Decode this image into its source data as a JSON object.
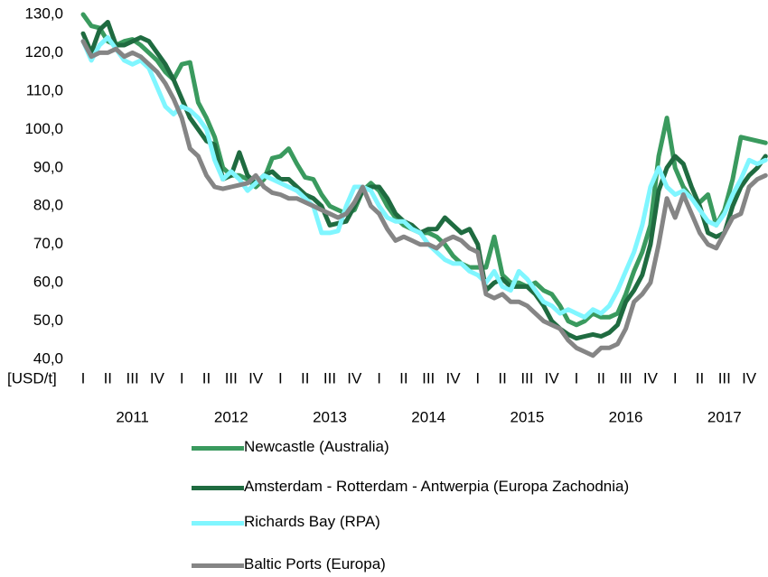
{
  "chart_data": {
    "type": "line",
    "y_label": "[USD/t]",
    "ylim": [
      40,
      130
    ],
    "yticks": [
      {
        "value": 40,
        "label": "40,0"
      },
      {
        "value": 50,
        "label": "50,0"
      },
      {
        "value": 60,
        "label": "60,0"
      },
      {
        "value": 70,
        "label": "70,0"
      },
      {
        "value": 80,
        "label": "80,0"
      },
      {
        "value": 90,
        "label": "90,0"
      },
      {
        "value": 100,
        "label": "100,0"
      },
      {
        "value": 110,
        "label": "110,0"
      },
      {
        "value": 120,
        "label": "120,0"
      },
      {
        "value": 130,
        "label": "130,0"
      }
    ],
    "categories": [
      "I",
      null,
      null,
      "II",
      null,
      null,
      "III",
      null,
      null,
      "IV",
      null,
      null,
      "I",
      null,
      null,
      "II",
      null,
      null,
      "III",
      null,
      null,
      "IV",
      null,
      null,
      "I",
      null,
      null,
      "II",
      null,
      null,
      "III",
      null,
      null,
      "IV",
      null,
      null,
      "I",
      null,
      null,
      "II",
      null,
      null,
      "III",
      null,
      null,
      "IV",
      null,
      null,
      "I",
      null,
      null,
      "II",
      null,
      null,
      "III",
      null,
      null,
      "IV",
      null,
      null,
      "I",
      null,
      null,
      "II",
      null,
      null,
      "III",
      null,
      null,
      "IV",
      null,
      null,
      "I",
      null,
      null,
      "II",
      null,
      null,
      "III",
      null,
      null,
      "IV",
      null,
      null
    ],
    "years": [
      "2011",
      "2012",
      "2013",
      "2014",
      "2015",
      "2016",
      "2017"
    ],
    "series": [
      {
        "name": "Newcastle (Australia)",
        "color": "#3a9a5e",
        "values": [
          130,
          127,
          126.5,
          123,
          122,
          123,
          123.5,
          122,
          120,
          118,
          115,
          113,
          117,
          117.5,
          107,
          103,
          98,
          90,
          88,
          88,
          87,
          85,
          87,
          92.5,
          93,
          95,
          91,
          87.5,
          87,
          83,
          80,
          79,
          78,
          79,
          84,
          86,
          84,
          80,
          77,
          75,
          74,
          73,
          73,
          72,
          70,
          67,
          65,
          64,
          64,
          64,
          72,
          62,
          60,
          60,
          59,
          60,
          58,
          57,
          54,
          50,
          49,
          50,
          52,
          51,
          51,
          52,
          57,
          63,
          68,
          75,
          93,
          103,
          90,
          85,
          82,
          81,
          83,
          75,
          79,
          87,
          98,
          97.5,
          97,
          96.5
        ]
      },
      {
        "name": "Amsterdam - Rotterdam - Antwerpia (Europa Zachodnia)",
        "color": "#1f6b40",
        "values": [
          125,
          120,
          126,
          128,
          122,
          122,
          123,
          124,
          123,
          120,
          117,
          113,
          108,
          103,
          100,
          97,
          96,
          87,
          88,
          94,
          88,
          86,
          88,
          89,
          87,
          87,
          85,
          83,
          82,
          80,
          75,
          75.5,
          76,
          80,
          84,
          85,
          85,
          82,
          78,
          76,
          75,
          73,
          74,
          74,
          77,
          75,
          73,
          74,
          70,
          58,
          60,
          61,
          59,
          59,
          59,
          57,
          54,
          50,
          48,
          46.5,
          45.5,
          46,
          46.5,
          46,
          47,
          49,
          55,
          58,
          62,
          70,
          84,
          90,
          93,
          91,
          85,
          80,
          73,
          72,
          73,
          80,
          85,
          88,
          90,
          93
        ]
      },
      {
        "name": "Richards Bay (RPA)",
        "color": "#80f6ff",
        "values": [
          123,
          118,
          122,
          124,
          121,
          118,
          117,
          118,
          116,
          111,
          106,
          104,
          106,
          105,
          103,
          100,
          92,
          87,
          89,
          87,
          84,
          86,
          88,
          87,
          86,
          85,
          84,
          82,
          80,
          73,
          73,
          73.5,
          80,
          85,
          85,
          84,
          80,
          77,
          76,
          76,
          74,
          73,
          70,
          68,
          66,
          65,
          65,
          63,
          62,
          60,
          63,
          59,
          58,
          63,
          61,
          58,
          55,
          54,
          52,
          53,
          52,
          51,
          53,
          52,
          54,
          58,
          63,
          68,
          75,
          85,
          90,
          85,
          83,
          84,
          82,
          79,
          76,
          75,
          78,
          83,
          87,
          92,
          91,
          92
        ]
      },
      {
        "name": "Baltic Ports (Europa)",
        "color": "#858585",
        "values": [
          123,
          119,
          120,
          120,
          121,
          119,
          120,
          119,
          117,
          115,
          112,
          108,
          103,
          95,
          93,
          88,
          85,
          84.5,
          85,
          85.5,
          86,
          88,
          85,
          83.5,
          83,
          82,
          82,
          81,
          80,
          79,
          78,
          77,
          78,
          81,
          85,
          80,
          78,
          74,
          71,
          72,
          71,
          70,
          70,
          69,
          71,
          72,
          71,
          69,
          68,
          57,
          56,
          57,
          55,
          55,
          54,
          52,
          50,
          49,
          48,
          45,
          43,
          42,
          41,
          43,
          43,
          44,
          48,
          55,
          57,
          60,
          70,
          82,
          77,
          83,
          78,
          73,
          70,
          69,
          73,
          77,
          78,
          85,
          87,
          88
        ]
      }
    ]
  }
}
